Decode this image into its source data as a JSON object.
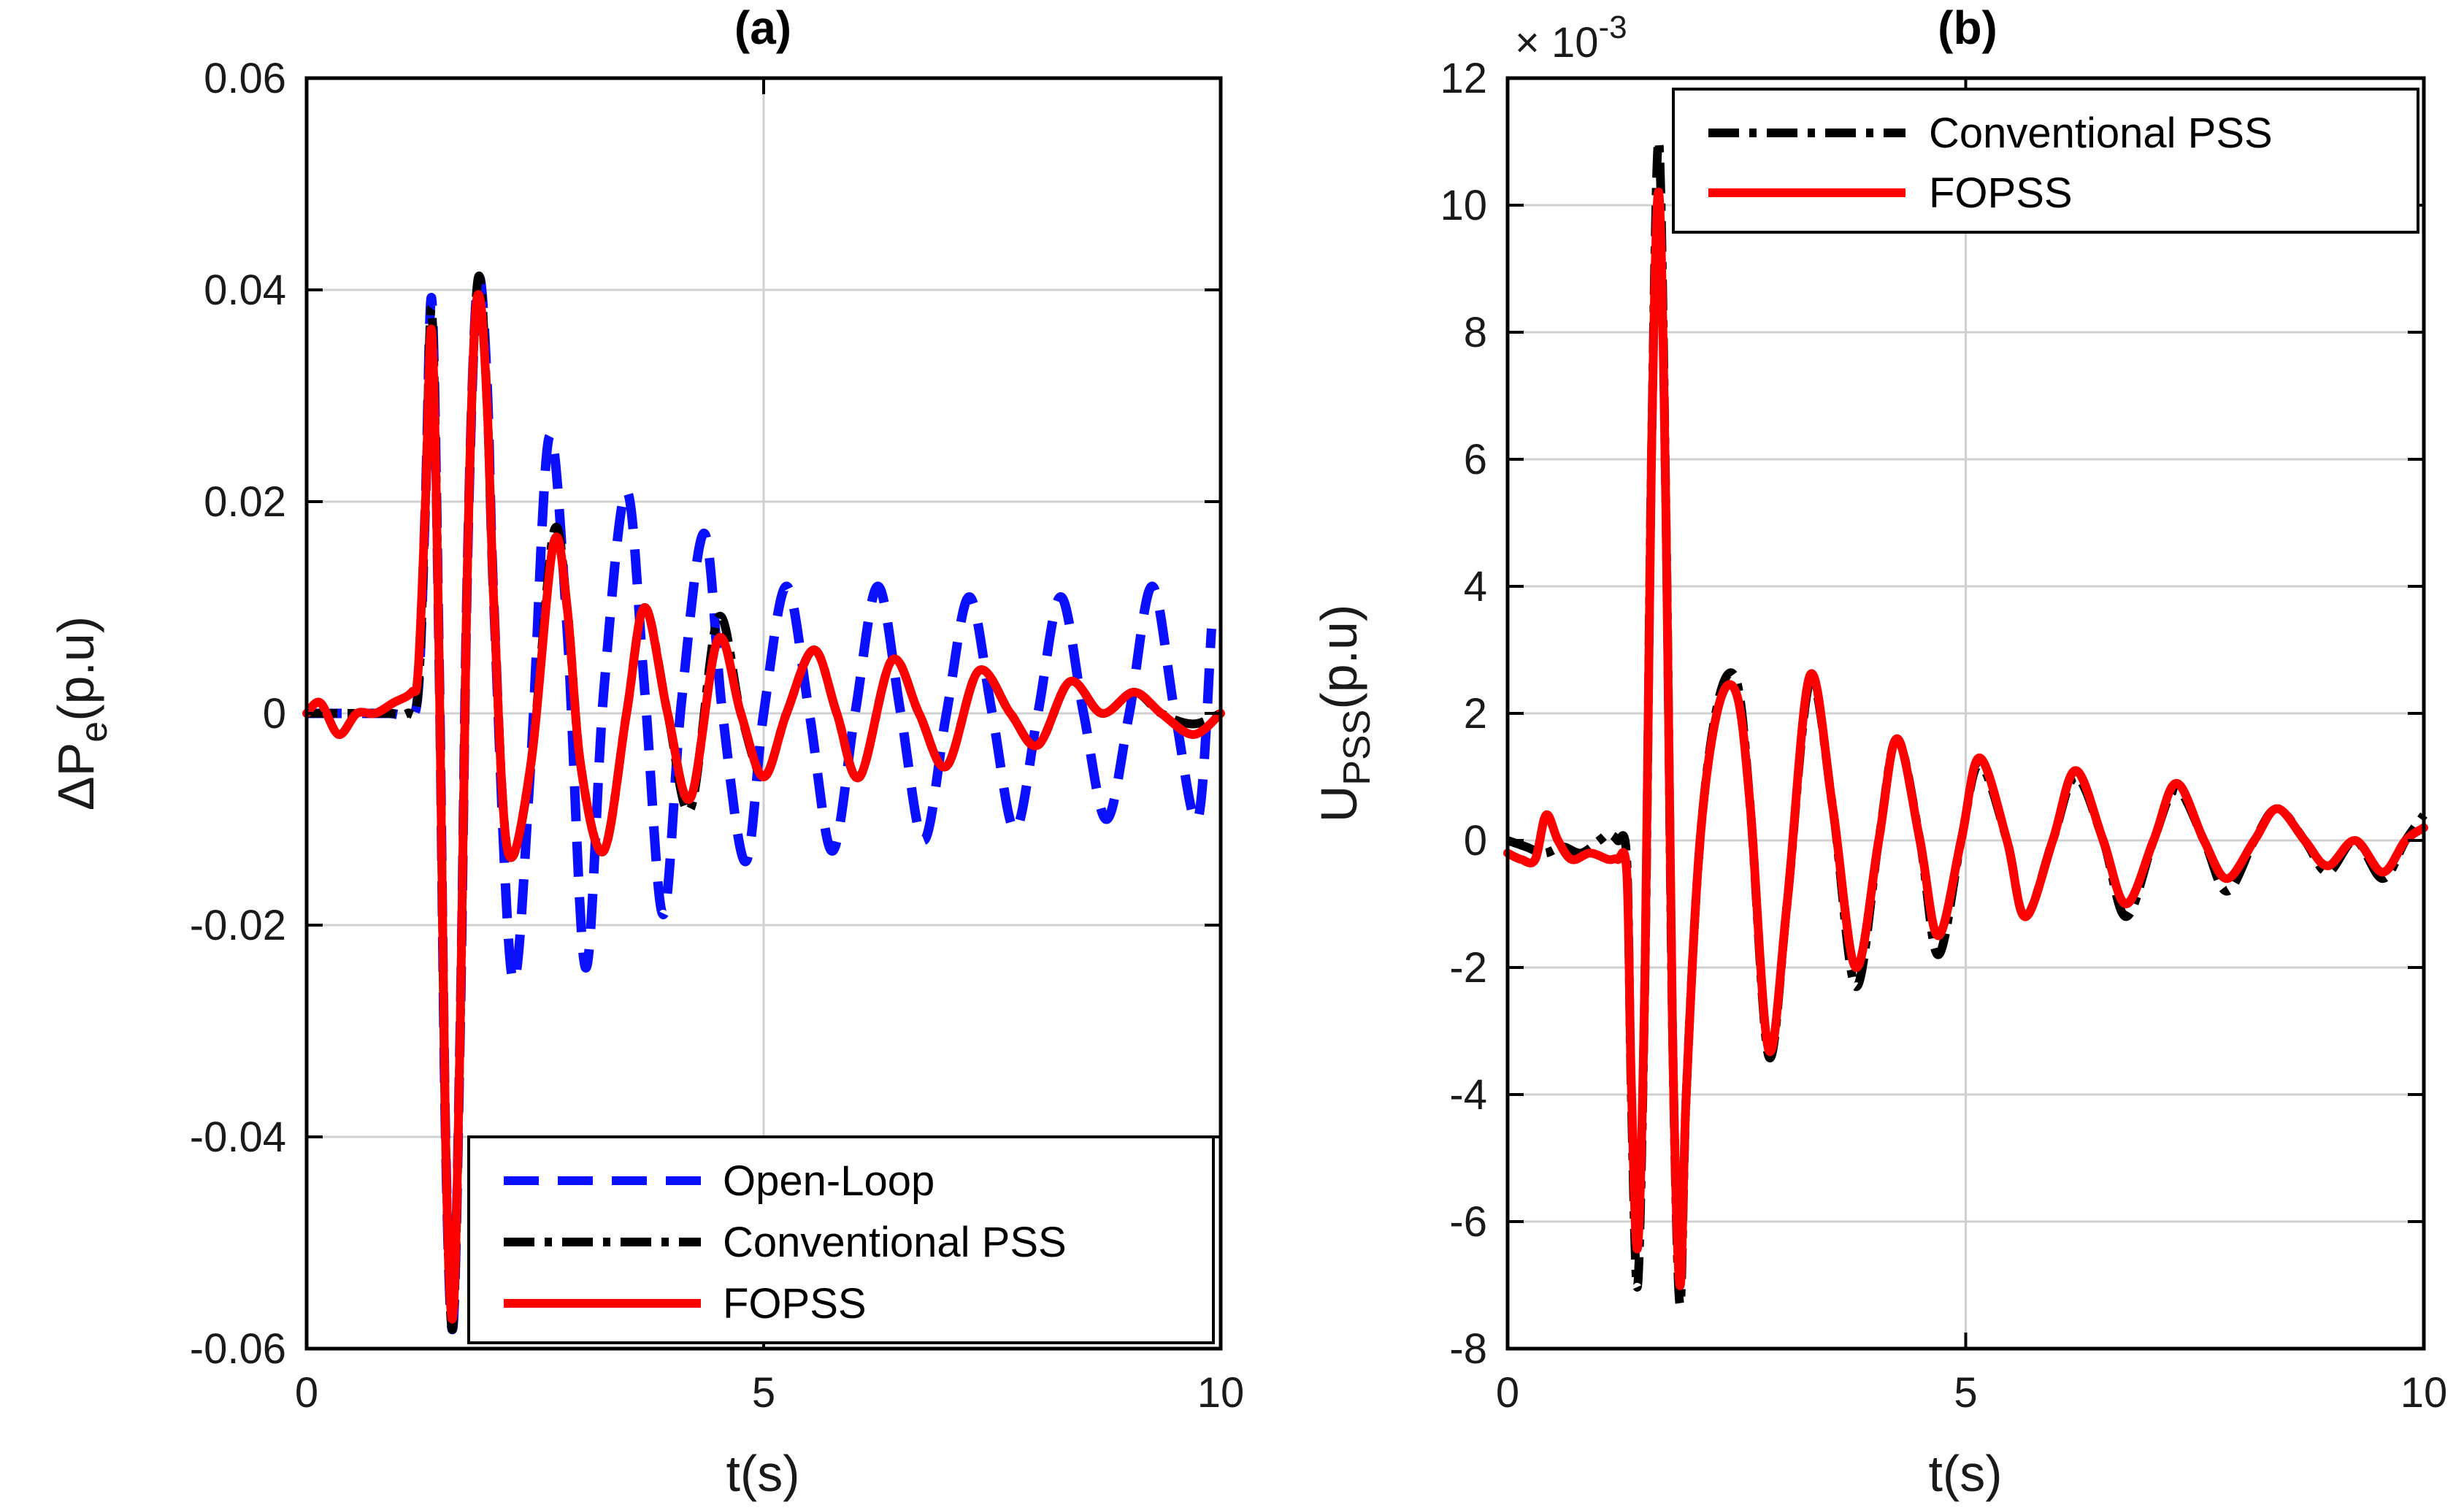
{
  "colors": {
    "open_loop": "#0a10ff",
    "conventional": "#000000",
    "fopss": "#ff0000",
    "grid": "#d0d0d0",
    "axis": "#000000"
  },
  "chart_data": [
    {
      "panel": "a",
      "type": "line",
      "title": "(a)",
      "xlabel": "t(s)",
      "ylabel_main": "ΔP",
      "ylabel_sub": "e",
      "ylabel_tail": "(p.u)",
      "xlim": [
        0,
        10
      ],
      "ylim": [
        -0.06,
        0.06
      ],
      "xticks": [
        0,
        5,
        10
      ],
      "xtick_labels": [
        "0",
        "5",
        "10"
      ],
      "yticks": [
        -0.06,
        -0.04,
        -0.02,
        0,
        0.02,
        0.04,
        0.06
      ],
      "ytick_labels": [
        "-0.06",
        "-0.04",
        "-0.02",
        "0",
        "0.02",
        "0.04",
        "0.06"
      ],
      "grid": true,
      "legend_position": "bottom-right",
      "series": [
        {
          "name": "Open-Loop",
          "style": "dashed",
          "x": [
            0,
            0.3,
            0.6,
            0.9,
            1.1,
            1.22,
            1.3,
            1.37,
            1.45,
            1.52,
            1.6,
            1.68,
            1.75,
            1.83,
            1.9,
            1.98,
            2.05,
            2.25,
            2.45,
            2.65,
            2.85,
            3.05,
            3.25,
            3.5,
            3.7,
            3.9,
            4.1,
            4.35,
            4.55,
            4.8,
            5.0,
            5.25,
            5.5,
            5.75,
            6.0,
            6.25,
            6.5,
            6.75,
            7.0,
            7.25,
            7.5,
            7.75,
            8.0,
            8.25,
            8.5,
            8.75,
            9.0,
            9.25,
            9.5,
            9.75,
            9.9
          ],
          "y": [
            0,
            0,
            0,
            0,
            0,
            0.002,
            0.02,
            0.039,
            0.005,
            -0.04,
            -0.058,
            -0.03,
            0.01,
            0.035,
            0.041,
            0.03,
            0.01,
            -0.025,
            -0.005,
            0.026,
            0.008,
            -0.024,
            0.002,
            0.021,
            0.002,
            -0.019,
            0.001,
            0.017,
            0,
            -0.014,
            0,
            0.012,
            0,
            -0.013,
            0,
            0.012,
            0,
            -0.012,
            0,
            0.011,
            0,
            -0.011,
            0,
            0.011,
            0,
            -0.01,
            0,
            0.012,
            0,
            -0.01,
            0.008
          ]
        },
        {
          "name": "Conventional PSS",
          "style": "dashdot",
          "x": [
            0,
            0.3,
            0.6,
            0.9,
            1.1,
            1.22,
            1.3,
            1.37,
            1.45,
            1.52,
            1.6,
            1.68,
            1.75,
            1.83,
            1.9,
            1.98,
            2.05,
            2.2,
            2.45,
            2.7,
            2.85,
            3.0,
            3.25,
            3.5,
            3.7,
            3.95,
            4.2,
            4.5,
            4.75,
            5.0,
            5.25,
            5.55,
            5.8,
            6.05,
            6.4,
            6.7,
            7.0,
            7.35,
            7.7,
            8.0,
            8.35,
            8.7,
            9.05,
            9.35,
            9.7,
            10.0
          ],
          "y": [
            0,
            0,
            0,
            0,
            0,
            0.002,
            0.02,
            0.038,
            0.005,
            -0.04,
            -0.058,
            -0.03,
            0.01,
            0.035,
            0.041,
            0.028,
            0.01,
            -0.013,
            -0.005,
            0.017,
            0.01,
            -0.005,
            -0.013,
            0,
            0.01,
            0,
            -0.009,
            0.009,
            0,
            -0.006,
            0,
            0.006,
            0,
            -0.006,
            0.005,
            0,
            -0.005,
            0.004,
            0,
            -0.003,
            0.003,
            0,
            0.002,
            0,
            -0.001,
            0
          ]
        },
        {
          "name": "FOPSS",
          "style": "solid",
          "x": [
            0,
            0.15,
            0.35,
            0.55,
            0.75,
            0.95,
            1.15,
            1.22,
            1.3,
            1.37,
            1.45,
            1.52,
            1.6,
            1.68,
            1.75,
            1.83,
            1.9,
            1.98,
            2.05,
            2.2,
            2.45,
            2.7,
            2.85,
            3.0,
            3.25,
            3.5,
            3.7,
            3.95,
            4.2,
            4.5,
            4.75,
            5.0,
            5.25,
            5.55,
            5.8,
            6.05,
            6.4,
            6.7,
            7.0,
            7.35,
            7.7,
            8.0,
            8.35,
            8.7,
            9.05,
            9.35,
            9.7,
            10.0
          ],
          "y": [
            0,
            0.001,
            -0.002,
            0,
            0,
            0.001,
            0.002,
            0.004,
            0.02,
            0.036,
            0.005,
            -0.04,
            -0.057,
            -0.03,
            0.01,
            0.035,
            0.039,
            0.028,
            0.01,
            -0.013,
            -0.005,
            0.016,
            0.01,
            -0.005,
            -0.013,
            0,
            0.01,
            0,
            -0.008,
            0.007,
            0,
            -0.006,
            0,
            0.006,
            0,
            -0.006,
            0.005,
            0,
            -0.005,
            0.004,
            0,
            -0.003,
            0.003,
            0,
            0.002,
            0,
            -0.002,
            0
          ]
        }
      ]
    },
    {
      "panel": "b",
      "type": "line",
      "title": "(b)",
      "xlabel": "t(s)",
      "ylabel_main": "U",
      "ylabel_sub": "PSS",
      "ylabel_tail": "(p.u)",
      "exponent_label": "× 10",
      "exponent_power": "-3",
      "xlim": [
        0,
        10
      ],
      "ylim": [
        -8,
        12
      ],
      "xticks": [
        0,
        5,
        10
      ],
      "xtick_labels": [
        "0",
        "5",
        "10"
      ],
      "yticks": [
        -8,
        -6,
        -4,
        -2,
        0,
        2,
        4,
        6,
        8,
        10,
        12
      ],
      "ytick_labels": [
        "-8",
        "-6",
        "-4",
        "-2",
        "0",
        "2",
        "4",
        "6",
        "8",
        "10",
        "12"
      ],
      "grid": true,
      "legend_position": "top-right",
      "series": [
        {
          "name": "Conventional PSS",
          "style": "dashdot",
          "x": [
            0,
            0.2,
            0.4,
            0.6,
            0.8,
            1.0,
            1.1,
            1.2,
            1.3,
            1.35,
            1.42,
            1.5,
            1.57,
            1.65,
            1.73,
            1.8,
            1.88,
            1.95,
            2.1,
            2.3,
            2.5,
            2.65,
            2.85,
            3.05,
            3.3,
            3.55,
            3.8,
            4.05,
            4.25,
            4.5,
            4.7,
            4.95,
            5.15,
            5.45,
            5.65,
            5.95,
            6.2,
            6.5,
            6.75,
            7.05,
            7.3,
            7.6,
            7.85,
            8.15,
            8.4,
            8.7,
            8.95,
            9.25,
            9.55,
            9.8,
            10.0
          ],
          "y": [
            0,
            -0.1,
            -0.2,
            -0.1,
            -0.2,
            0,
            0.1,
            0,
            -0.3,
            -4,
            -7,
            -2,
            6,
            11,
            5,
            -3,
            -7.3,
            -4,
            0,
            2.2,
            2.5,
            0.5,
            -3.4,
            -1,
            2.5,
            0.5,
            -2.3,
            0,
            1.6,
            0,
            -1.8,
            0,
            1.2,
            0,
            -1.2,
            0,
            1,
            0,
            -1.2,
            0,
            0.8,
            0,
            -0.8,
            0,
            0.5,
            0,
            -0.5,
            0,
            -0.6,
            0,
            0.4
          ]
        },
        {
          "name": "FOPSS",
          "style": "solid",
          "x": [
            0,
            0.15,
            0.3,
            0.42,
            0.55,
            0.7,
            0.9,
            1.1,
            1.2,
            1.3,
            1.35,
            1.42,
            1.5,
            1.57,
            1.65,
            1.73,
            1.8,
            1.88,
            1.95,
            2.1,
            2.3,
            2.5,
            2.65,
            2.85,
            3.05,
            3.3,
            3.55,
            3.8,
            4.05,
            4.25,
            4.5,
            4.7,
            4.95,
            5.15,
            5.45,
            5.65,
            5.95,
            6.2,
            6.5,
            6.75,
            7.05,
            7.3,
            7.6,
            7.85,
            8.15,
            8.4,
            8.7,
            8.95,
            9.25,
            9.55,
            9.8,
            10.0
          ],
          "y": [
            -0.2,
            -0.3,
            -0.3,
            0.4,
            0,
            -0.3,
            -0.2,
            -0.3,
            -0.3,
            -0.5,
            -3.8,
            -6.4,
            -2,
            6,
            10.2,
            5,
            -3,
            -7,
            -4,
            0,
            2.1,
            2.3,
            0.5,
            -3.3,
            -1,
            2.6,
            0.5,
            -2,
            0,
            1.6,
            0,
            -1.5,
            0,
            1.3,
            0,
            -1.2,
            0,
            1.1,
            0,
            -1,
            0,
            0.9,
            0,
            -0.6,
            0,
            0.5,
            0,
            -0.4,
            0,
            -0.5,
            0,
            0.2
          ]
        }
      ]
    }
  ]
}
